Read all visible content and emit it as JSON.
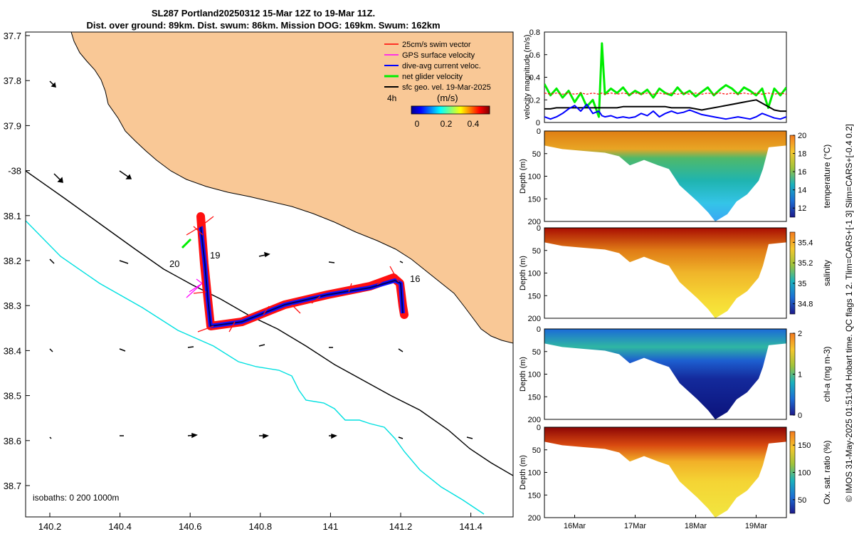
{
  "header": {
    "title_line1": "SL287 Portland20250312 15-Mar 12Z to 19-Mar 11Z.",
    "title_line2": "Dist. over ground: 89km. Dist. swum: 86km. Mission DOG: 169km. Swum: 162km"
  },
  "side_note": "© IMOS 31-May-2025 01:51:04 Hobart time. QC flags 1  2. Tlim=CARS+[-1 3] Slim=CARS+[-0.4 0.2]",
  "map": {
    "lat_ticks": [
      "37.7",
      "37.8",
      "37.9",
      "-38",
      "38.1",
      "38.2",
      "38.3",
      "38.4",
      "38.5",
      "38.6",
      "38.7"
    ],
    "lon_ticks": [
      "140.2",
      "140.4",
      "140.6",
      "140.8",
      "141",
      "141.2",
      "141.4"
    ],
    "isobaths_label": "isobaths: 0   200  1000m",
    "legend": [
      {
        "label": "25cm/s swim vector",
        "color": "#ff0000"
      },
      {
        "label": "GPS surface velocity",
        "color": "#ff00ff"
      },
      {
        "label": "dive-avg current veloc.",
        "color": "#0000ff"
      },
      {
        "label": "net glider velocity",
        "color": "#00ee00"
      },
      {
        "label": "sfc geo. vel. 19-Mar-2025",
        "color": "#000000"
      }
    ],
    "colorbar_label": "(m/s)",
    "colorbar_ticks": [
      "0",
      "0.2",
      "0.4"
    ],
    "corner_label": "4h",
    "day_labels": [
      "20",
      "19",
      "16"
    ],
    "colors": {
      "land": "#f9c896",
      "shelf_line": "#000000",
      "deep_line": "#00e0e0"
    }
  },
  "chart_data": [
    {
      "type": "line",
      "title": "velocity magnitude",
      "ylabel": "velocity magnitude (m/s)",
      "ylim": [
        0,
        0.8
      ],
      "yticks": [
        "0",
        "0.2",
        "0.4",
        "0.6",
        "0.8"
      ],
      "x_days": [
        15.5,
        15.6,
        15.7,
        15.8,
        15.9,
        16.0,
        16.1,
        16.2,
        16.3,
        16.4,
        16.45,
        16.5,
        16.6,
        16.7,
        16.8,
        16.9,
        17.0,
        17.1,
        17.2,
        17.3,
        17.4,
        17.5,
        17.6,
        17.7,
        17.8,
        17.9,
        18.0,
        18.1,
        18.2,
        18.3,
        18.4,
        18.5,
        18.6,
        18.7,
        18.8,
        18.9,
        19.0,
        19.1,
        19.2,
        19.3,
        19.4,
        19.5
      ],
      "series": [
        {
          "name": "net glider velocity",
          "color": "#00ee00",
          "values": [
            0.34,
            0.24,
            0.3,
            0.22,
            0.28,
            0.18,
            0.26,
            0.14,
            0.2,
            0.05,
            0.7,
            0.25,
            0.3,
            0.26,
            0.31,
            0.24,
            0.28,
            0.25,
            0.29,
            0.22,
            0.3,
            0.26,
            0.24,
            0.31,
            0.25,
            0.28,
            0.23,
            0.27,
            0.31,
            0.24,
            0.29,
            0.33,
            0.3,
            0.25,
            0.31,
            0.28,
            0.24,
            0.3,
            0.13,
            0.3,
            0.24,
            0.31
          ]
        },
        {
          "name": "swim 0.25",
          "color": "#ff0000",
          "values": [
            0.26,
            0.25,
            0.26,
            0.25,
            0.26,
            0.25,
            0.26,
            0.25,
            0.26,
            0.25,
            0.26,
            0.25,
            0.26,
            0.25,
            0.26,
            0.25,
            0.26,
            0.25,
            0.26,
            0.25,
            0.26,
            0.25,
            0.26,
            0.25,
            0.26,
            0.25,
            0.26,
            0.25,
            0.26,
            0.25,
            0.26,
            0.25,
            0.26,
            0.25,
            0.26,
            0.25,
            0.26,
            0.25,
            0.26,
            0.25,
            0.26,
            0.25
          ]
        },
        {
          "name": "sfc geo",
          "color": "#000000",
          "values": [
            0.12,
            0.12,
            0.13,
            0.13,
            0.13,
            0.13,
            0.13,
            0.13,
            0.13,
            0.13,
            0.13,
            0.13,
            0.13,
            0.13,
            0.14,
            0.14,
            0.14,
            0.14,
            0.14,
            0.14,
            0.14,
            0.14,
            0.13,
            0.13,
            0.13,
            0.13,
            0.12,
            0.11,
            0.12,
            0.13,
            0.14,
            0.15,
            0.16,
            0.17,
            0.18,
            0.19,
            0.2,
            0.17,
            0.14,
            0.11,
            0.1,
            0.1
          ]
        },
        {
          "name": "dive-avg current",
          "color": "#0000ff",
          "values": [
            0.05,
            0.03,
            0.05,
            0.08,
            0.12,
            0.15,
            0.1,
            0.16,
            0.08,
            0.1,
            0.06,
            0.05,
            0.06,
            0.04,
            0.05,
            0.04,
            0.05,
            0.08,
            0.06,
            0.1,
            0.05,
            0.08,
            0.1,
            0.08,
            0.09,
            0.11,
            0.09,
            0.07,
            0.06,
            0.05,
            0.04,
            0.03,
            0.04,
            0.05,
            0.04,
            0.03,
            0.05,
            0.08,
            0.06,
            0.04,
            0.03,
            0.05
          ]
        }
      ]
    },
    {
      "type": "heatmap",
      "ylabel": "Depth (m)",
      "clabel": "temperature (°C)",
      "yticks": [
        "0",
        "50",
        "100",
        "150",
        "200"
      ],
      "cticks": [
        "20",
        "18",
        "16",
        "14",
        "12"
      ],
      "clim": [
        11,
        20
      ]
    },
    {
      "type": "heatmap",
      "ylabel": "Depth (m)",
      "clabel": "salinity",
      "yticks": [
        "0",
        "50",
        "100",
        "150",
        "200"
      ],
      "cticks": [
        "35.4",
        "35.2",
        "35",
        "34.8"
      ],
      "clim": [
        34.7,
        35.5
      ]
    },
    {
      "type": "heatmap",
      "ylabel": "Depth (m)",
      "clabel": "chl-a (mg m-3)",
      "yticks": [
        "0",
        "50",
        "100",
        "150",
        "200"
      ],
      "cticks": [
        "2",
        "1",
        "0"
      ],
      "clim": [
        0,
        2
      ]
    },
    {
      "type": "heatmap",
      "ylabel": "Depth (m)",
      "clabel": "Ox. sat. ratio (%)",
      "yticks": [
        "0",
        "50",
        "100",
        "150",
        "200"
      ],
      "cticks": [
        "150",
        "100",
        "50"
      ],
      "clim": [
        25,
        175
      ],
      "xticks": [
        "16Mar",
        "17Mar",
        "18Mar",
        "19Mar"
      ]
    }
  ]
}
